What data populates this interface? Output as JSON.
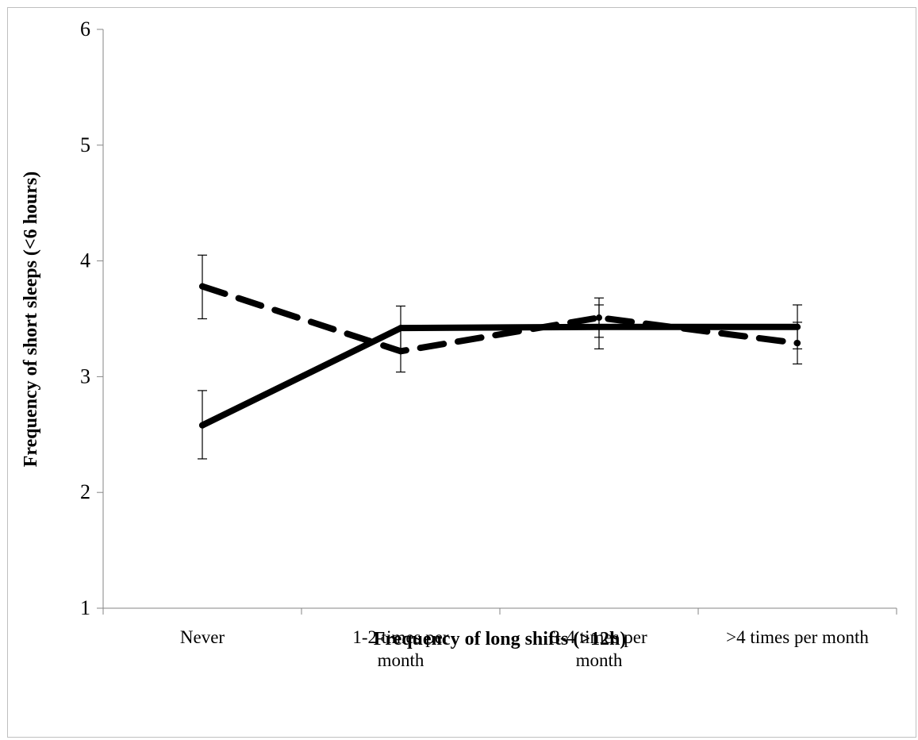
{
  "chart_data": {
    "type": "line",
    "title": "",
    "xlabel": "Frequency of long shifts (>12h)",
    "ylabel": "Frequency of short sleeps (<6 hours)",
    "categories": [
      "Never",
      "1-2 times per month",
      "3-4 times per month",
      ">4 times per month"
    ],
    "category_lines": [
      [
        "Never"
      ],
      [
        "1-2 times per",
        "month"
      ],
      [
        "3-4 times per",
        "month"
      ],
      [
        ">4 times per month"
      ]
    ],
    "ylim": [
      1,
      6
    ],
    "yticks": [
      1,
      2,
      3,
      4,
      5,
      6
    ],
    "grid": false,
    "legend": "none",
    "series": [
      {
        "style": "solid",
        "color": "#000000",
        "values": [
          2.58,
          3.42,
          3.43,
          3.43
        ],
        "error_low": [
          2.29,
          3.23,
          3.24,
          3.24
        ],
        "error_high": [
          2.88,
          3.61,
          3.62,
          3.62
        ]
      },
      {
        "style": "dashed",
        "color": "#000000",
        "values": [
          3.78,
          3.22,
          3.51,
          3.29
        ],
        "error_low": [
          3.5,
          3.04,
          3.34,
          3.11
        ],
        "error_high": [
          4.05,
          3.4,
          3.68,
          3.47
        ]
      }
    ]
  }
}
